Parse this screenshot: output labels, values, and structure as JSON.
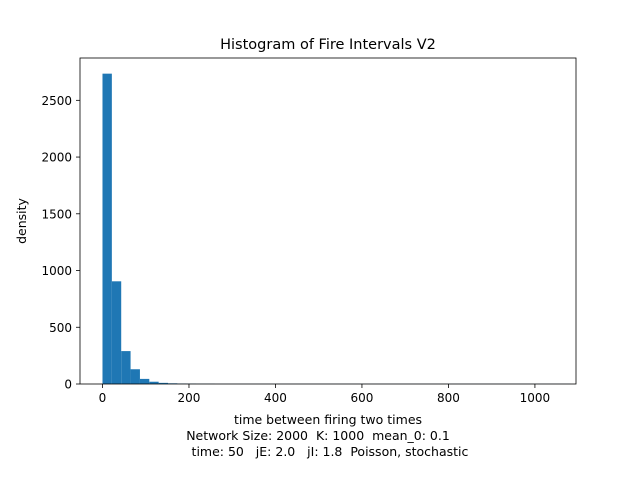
{
  "chart_data": {
    "type": "bar",
    "title": "Histogram of Fire Intervals V2",
    "xlabel": "time between firing two times",
    "ylabel": "density",
    "caption_lines": [
      "Network Size: 2000  K: 1000  mean_0: 0.1",
      "  time: 50   jE: 2.0   jI: 1.8  Poisson, stochastic"
    ],
    "xlim": [
      -52,
      1095
    ],
    "ylim": [
      0,
      2873
    ],
    "xticks": [
      0,
      200,
      400,
      600,
      800,
      1000
    ],
    "yticks": [
      0,
      500,
      1000,
      1500,
      2000,
      2500
    ],
    "bin_width": 21.65,
    "bin_start": 0,
    "values": [
      2735,
      905,
      290,
      130,
      45,
      20,
      10,
      6,
      4,
      3,
      2,
      2,
      1,
      1,
      1,
      1,
      1,
      1,
      1,
      1,
      1,
      1,
      1,
      1,
      1,
      1,
      1,
      1,
      1,
      1,
      1,
      1,
      1,
      1,
      1,
      1,
      1,
      1,
      1,
      1,
      1,
      1,
      1,
      1,
      1,
      1,
      1,
      1,
      1,
      1
    ],
    "bar_color": "#1f77b4",
    "grid": false
  }
}
